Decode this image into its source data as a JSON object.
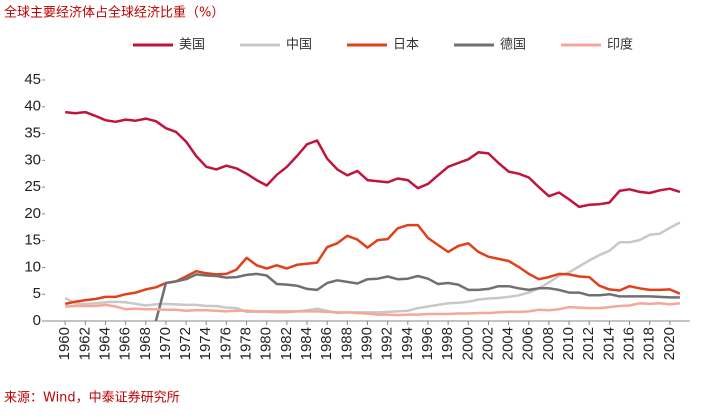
{
  "chart_data": {
    "type": "line",
    "title": "全球主要经济体占全球经济比重（%）",
    "source": "来源：Wind，中泰证券研究所",
    "x": [
      1960,
      1961,
      1962,
      1963,
      1964,
      1965,
      1966,
      1967,
      1968,
      1969,
      1970,
      1971,
      1972,
      1973,
      1974,
      1975,
      1976,
      1977,
      1978,
      1979,
      1980,
      1981,
      1982,
      1983,
      1984,
      1985,
      1986,
      1987,
      1988,
      1989,
      1990,
      1991,
      1992,
      1993,
      1994,
      1995,
      1996,
      1997,
      1998,
      1999,
      2000,
      2001,
      2002,
      2003,
      2004,
      2005,
      2006,
      2007,
      2008,
      2009,
      2010,
      2011,
      2012,
      2013,
      2014,
      2015,
      2016,
      2017,
      2018,
      2019,
      2020,
      2021
    ],
    "xlim": [
      1958,
      2022
    ],
    "xticks": [
      1960,
      1962,
      1964,
      1966,
      1968,
      1970,
      1972,
      1974,
      1976,
      1978,
      1980,
      1982,
      1984,
      1986,
      1988,
      1990,
      1992,
      1994,
      1996,
      1998,
      2000,
      2002,
      2004,
      2006,
      2008,
      2010,
      2012,
      2014,
      2016,
      2018,
      2020
    ],
    "ylim": [
      0,
      45
    ],
    "yticks": [
      0,
      5,
      10,
      15,
      20,
      25,
      30,
      35,
      40,
      45
    ],
    "series": [
      {
        "name": "美国",
        "color": "#c0143c",
        "values": [
          39,
          38.8,
          39,
          38.3,
          37.5,
          37.2,
          37.6,
          37.4,
          37.8,
          37.3,
          36,
          35.3,
          33.5,
          30.8,
          28.8,
          28.3,
          29,
          28.5,
          27.5,
          26.3,
          25.3,
          27.3,
          28.8,
          30.8,
          33,
          33.7,
          30.3,
          28.3,
          27.2,
          28,
          26.3,
          26.1,
          25.9,
          26.6,
          26.3,
          24.8,
          25.6,
          27.2,
          28.8,
          29.5,
          30.2,
          31.5,
          31.3,
          29.5,
          27.9,
          27.5,
          26.8,
          25,
          23.3,
          24,
          22.7,
          21.3,
          21.7,
          21.8,
          22.1,
          24.3,
          24.6,
          24.1,
          23.9,
          24.4,
          24.7,
          24.1
        ]
      },
      {
        "name": "中国",
        "color": "#c8c8c8",
        "values": [
          4.3,
          3.3,
          3.2,
          3.3,
          3.5,
          3.6,
          3.5,
          3.2,
          2.9,
          3.1,
          3.2,
          3.1,
          3,
          3,
          2.8,
          2.8,
          2.5,
          2.4,
          1.7,
          1.7,
          1.7,
          1.6,
          1.6,
          1.8,
          2,
          2.3,
          1.9,
          1.5,
          1.6,
          1.6,
          1.6,
          1.6,
          1.7,
          1.8,
          1.9,
          2.4,
          2.7,
          3,
          3.3,
          3.4,
          3.6,
          4,
          4.2,
          4.3,
          4.5,
          4.8,
          5.3,
          6.1,
          7.2,
          8.4,
          9.1,
          10.2,
          11.3,
          12.3,
          13.1,
          14.7,
          14.7,
          15.1,
          16.1,
          16.3,
          17.4,
          18.4
        ]
      },
      {
        "name": "日本",
        "color": "#e0401a",
        "values": [
          3.2,
          3.6,
          3.9,
          4.1,
          4.5,
          4.5,
          5,
          5.3,
          5.9,
          6.3,
          7.1,
          7.4,
          8.3,
          9.3,
          8.9,
          8.7,
          8.8,
          9.6,
          11.8,
          10.4,
          9.8,
          10.4,
          9.8,
          10.5,
          10.7,
          10.9,
          13.8,
          14.5,
          15.9,
          15.2,
          13.7,
          15.1,
          15.3,
          17.3,
          17.9,
          17.9,
          15.5,
          14.2,
          12.9,
          14,
          14.5,
          12.9,
          12,
          11.6,
          11.2,
          10.1,
          8.8,
          7.8,
          8.2,
          8.8,
          8.7,
          8.3,
          8.2,
          6.6,
          5.9,
          5.7,
          6.5,
          6.1,
          5.8,
          5.8,
          5.9,
          5.1
        ]
      },
      {
        "name": "德国",
        "color": "#707070",
        "values": [
          null,
          null,
          null,
          null,
          null,
          null,
          null,
          null,
          null,
          0,
          7.1,
          7.4,
          7.8,
          8.7,
          8.5,
          8.4,
          8.1,
          8.2,
          8.6,
          8.8,
          8.5,
          6.9,
          6.8,
          6.6,
          6,
          5.8,
          7.1,
          7.6,
          7.3,
          7,
          7.8,
          7.9,
          8.3,
          7.8,
          7.9,
          8.4,
          7.9,
          6.9,
          7.1,
          6.8,
          5.8,
          5.8,
          6,
          6.5,
          6.5,
          6.1,
          5.8,
          6.1,
          6.1,
          5.8,
          5.3,
          5.3,
          4.8,
          4.8,
          5,
          4.6,
          4.6,
          4.6,
          4.6,
          4.5,
          4.4,
          4.4
        ]
      },
      {
        "name": "印度",
        "color": "#f4a89a",
        "values": [
          2.7,
          2.8,
          2.8,
          2.8,
          3,
          2.7,
          2.2,
          2.3,
          2.2,
          2.2,
          2.1,
          2.1,
          1.9,
          2,
          2,
          1.9,
          1.8,
          1.9,
          1.9,
          1.8,
          1.8,
          1.8,
          1.8,
          1.8,
          1.8,
          1.8,
          1.7,
          1.6,
          1.6,
          1.5,
          1.4,
          1.2,
          1.2,
          1.1,
          1.2,
          1.2,
          1.3,
          1.3,
          1.3,
          1.4,
          1.4,
          1.5,
          1.5,
          1.6,
          1.7,
          1.7,
          1.8,
          2.1,
          2,
          2.2,
          2.6,
          2.5,
          2.4,
          2.4,
          2.6,
          2.8,
          2.9,
          3.3,
          3.2,
          3.3,
          3.1,
          3.3
        ]
      }
    ],
    "title_color": "#c00000",
    "legend": "top"
  }
}
